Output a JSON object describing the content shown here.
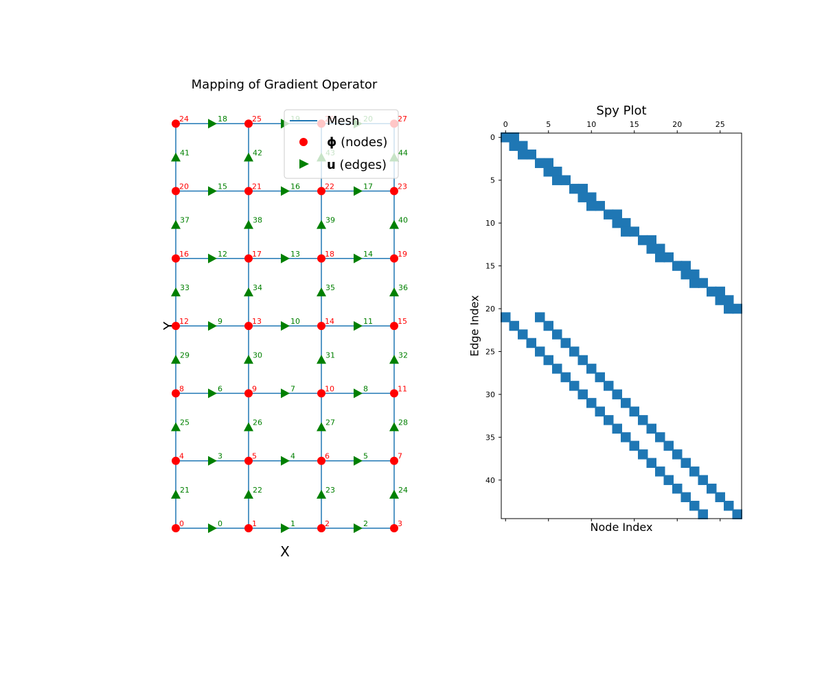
{
  "chart_data": [
    {
      "type": "scatter",
      "title": "Mapping of Gradient Operator",
      "xlabel": "X",
      "ylabel": "Y",
      "grid": {
        "cols": 4,
        "rows": 7
      },
      "legend": {
        "placement": "top-right",
        "entries": [
          {
            "key": "mesh",
            "label": "Mesh",
            "color": "#1f77b4",
            "marker": "line"
          },
          {
            "key": "nodes",
            "symbol": "ϕ",
            "label": " (nodes)",
            "color": "#ff0000",
            "marker": "circle"
          },
          {
            "key": "edges",
            "symbol": "u",
            "label": " (edges)",
            "color": "#008000",
            "marker": "triangle-right"
          }
        ]
      },
      "node_labels": [
        "0",
        "1",
        "2",
        "3",
        "4",
        "5",
        "6",
        "7",
        "8",
        "9",
        "10",
        "11",
        "12",
        "13",
        "14",
        "15",
        "16",
        "17",
        "18",
        "19",
        "20",
        "21",
        "22",
        "23",
        "24",
        "25",
        "26",
        "27"
      ],
      "h_edge_labels": [
        "0",
        "1",
        "2",
        "3",
        "4",
        "5",
        "6",
        "7",
        "8",
        "9",
        "10",
        "11",
        "12",
        "13",
        "14",
        "15",
        "16",
        "17",
        "18",
        "19",
        "20"
      ],
      "v_edge_labels": [
        "21",
        "22",
        "23",
        "24",
        "25",
        "26",
        "27",
        "28",
        "29",
        "30",
        "31",
        "32",
        "33",
        "34",
        "35",
        "36",
        "37",
        "38",
        "39",
        "40",
        "41",
        "42",
        "43",
        "44"
      ],
      "colors": {
        "mesh": "#1f77b4",
        "nodes": "#ff0000",
        "edges": "#008000"
      }
    },
    {
      "type": "heatmap",
      "title": "Spy Plot",
      "xlabel": "Node Index",
      "ylabel": "Edge Index",
      "xlim": [
        0,
        28
      ],
      "ylim": [
        0,
        45
      ],
      "xticks": [
        0,
        5,
        10,
        15,
        20,
        25
      ],
      "yticks": [
        0,
        5,
        10,
        15,
        20,
        25,
        30,
        35,
        40
      ],
      "color": "#1f77b4",
      "nonzeros": [
        [
          0,
          0
        ],
        [
          0,
          1
        ],
        [
          1,
          1
        ],
        [
          1,
          2
        ],
        [
          2,
          2
        ],
        [
          2,
          3
        ],
        [
          3,
          4
        ],
        [
          3,
          5
        ],
        [
          4,
          5
        ],
        [
          4,
          6
        ],
        [
          5,
          6
        ],
        [
          5,
          7
        ],
        [
          6,
          8
        ],
        [
          6,
          9
        ],
        [
          7,
          9
        ],
        [
          7,
          10
        ],
        [
          8,
          10
        ],
        [
          8,
          11
        ],
        [
          9,
          12
        ],
        [
          9,
          13
        ],
        [
          10,
          13
        ],
        [
          10,
          14
        ],
        [
          11,
          14
        ],
        [
          11,
          15
        ],
        [
          12,
          16
        ],
        [
          12,
          17
        ],
        [
          13,
          17
        ],
        [
          13,
          18
        ],
        [
          14,
          18
        ],
        [
          14,
          19
        ],
        [
          15,
          20
        ],
        [
          15,
          21
        ],
        [
          16,
          21
        ],
        [
          16,
          22
        ],
        [
          17,
          22
        ],
        [
          17,
          23
        ],
        [
          18,
          24
        ],
        [
          18,
          25
        ],
        [
          19,
          25
        ],
        [
          19,
          26
        ],
        [
          20,
          26
        ],
        [
          20,
          27
        ],
        [
          21,
          0
        ],
        [
          21,
          4
        ],
        [
          22,
          1
        ],
        [
          22,
          5
        ],
        [
          23,
          2
        ],
        [
          23,
          6
        ],
        [
          24,
          3
        ],
        [
          24,
          7
        ],
        [
          25,
          4
        ],
        [
          25,
          8
        ],
        [
          26,
          5
        ],
        [
          26,
          9
        ],
        [
          27,
          6
        ],
        [
          27,
          10
        ],
        [
          28,
          7
        ],
        [
          28,
          11
        ],
        [
          29,
          8
        ],
        [
          29,
          12
        ],
        [
          30,
          9
        ],
        [
          30,
          13
        ],
        [
          31,
          10
        ],
        [
          31,
          14
        ],
        [
          32,
          11
        ],
        [
          32,
          15
        ],
        [
          33,
          12
        ],
        [
          33,
          16
        ],
        [
          34,
          13
        ],
        [
          34,
          17
        ],
        [
          35,
          14
        ],
        [
          35,
          18
        ],
        [
          36,
          15
        ],
        [
          36,
          19
        ],
        [
          37,
          16
        ],
        [
          37,
          20
        ],
        [
          38,
          17
        ],
        [
          38,
          21
        ],
        [
          39,
          18
        ],
        [
          39,
          22
        ],
        [
          40,
          19
        ],
        [
          40,
          23
        ],
        [
          41,
          20
        ],
        [
          41,
          24
        ],
        [
          42,
          21
        ],
        [
          42,
          25
        ],
        [
          43,
          22
        ],
        [
          43,
          26
        ],
        [
          44,
          23
        ],
        [
          44,
          27
        ]
      ]
    }
  ]
}
